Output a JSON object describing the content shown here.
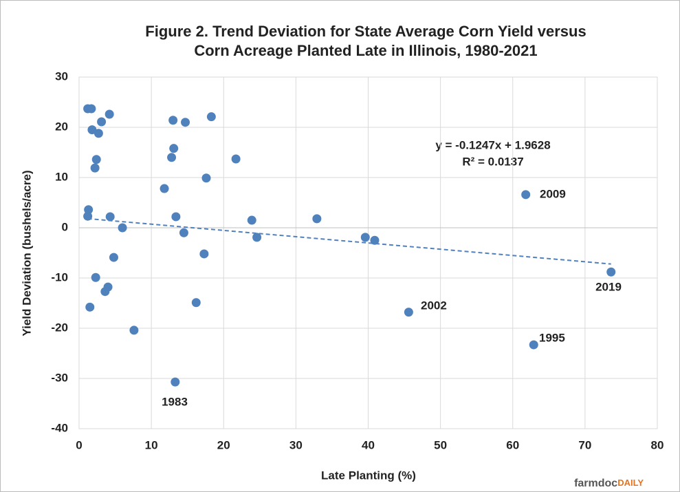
{
  "chart_data": {
    "type": "scatter",
    "title": [
      "Figure 2. Trend Deviation for State Average Corn Yield versus",
      "Corn Acreage Planted Late in Illinois, 1980-2021"
    ],
    "x_label": "Late Planting (%)",
    "y_label": "Yield Deviation (bushels/acre)",
    "series": [
      {
        "color": "#4f81bd",
        "x": [
          1.2,
          1.7,
          1.8,
          3.1,
          4.2,
          2.7,
          2.4,
          2.2,
          1.3,
          1.2,
          4.3,
          6.0,
          4.8,
          2.3,
          4.0,
          3.6,
          1.5,
          7.6,
          13.0,
          14.7,
          18.3,
          13.1,
          12.8,
          21.7,
          11.8,
          17.6,
          13.4,
          14.5,
          17.3,
          16.2,
          13.3,
          23.9,
          24.6,
          32.9,
          39.6,
          40.9,
          45.6,
          61.8,
          62.9,
          73.6
        ],
        "values": [
          23.7,
          23.7,
          19.5,
          21.1,
          22.6,
          18.8,
          13.6,
          11.9,
          3.6,
          2.3,
          2.2,
          0.0,
          -5.9,
          -9.9,
          -11.8,
          -12.7,
          -15.8,
          -20.4,
          21.4,
          21.0,
          22.1,
          15.8,
          14.0,
          13.7,
          7.8,
          9.9,
          2.2,
          -1.0,
          -5.2,
          -14.9,
          -30.7,
          1.5,
          -1.9,
          1.8,
          -1.9,
          -2.5,
          -16.8,
          6.6,
          -23.3,
          -8.8
        ]
      }
    ],
    "trendline": {
      "slope": -0.1247,
      "intercept": 1.9628,
      "color": "#4f81bd"
    },
    "equation": [
      "y = -0.1247x + 1.9628",
      "R² = 0.0137"
    ],
    "annotations": [
      "2009",
      "2019",
      "2002",
      "1995",
      "1983"
    ],
    "xlim": [
      0,
      80
    ],
    "xticks": [
      0,
      10,
      20,
      30,
      40,
      50,
      60,
      70,
      80
    ],
    "ylim": [
      -40,
      30
    ],
    "yticks": [
      -40,
      -30,
      -20,
      -10,
      0,
      10,
      20,
      30
    ],
    "grid": true,
    "source": [
      "farmdoc",
      "DAILY"
    ]
  }
}
